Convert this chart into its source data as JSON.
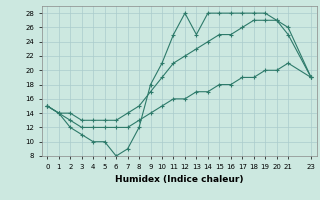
{
  "title": "",
  "xlabel": "Humidex (Indice chaleur)",
  "background_color": "#cce8e0",
  "grid_color": "#aacccc",
  "line_color": "#2d7a6a",
  "xlim": [
    -0.5,
    23.5
  ],
  "ylim": [
    8,
    29
  ],
  "yticks": [
    8,
    10,
    12,
    14,
    16,
    18,
    20,
    22,
    24,
    26,
    28
  ],
  "xticks": [
    0,
    1,
    2,
    3,
    4,
    5,
    6,
    7,
    8,
    9,
    10,
    11,
    12,
    13,
    14,
    15,
    16,
    17,
    18,
    19,
    20,
    21,
    23
  ],
  "line1_x": [
    0,
    1,
    2,
    3,
    4,
    5,
    6,
    7,
    8,
    9,
    10,
    11,
    12,
    13,
    14,
    15,
    16,
    17,
    18,
    19,
    20,
    21,
    23
  ],
  "line1_y": [
    15,
    14,
    12,
    11,
    10,
    10,
    8,
    9,
    12,
    18,
    21,
    25,
    28,
    25,
    28,
    28,
    28,
    28,
    28,
    28,
    27,
    25,
    19
  ],
  "line2_x": [
    0,
    1,
    2,
    3,
    4,
    5,
    6,
    7,
    8,
    9,
    10,
    11,
    12,
    13,
    14,
    15,
    16,
    17,
    18,
    19,
    20,
    21,
    23
  ],
  "line2_y": [
    15,
    14,
    14,
    13,
    13,
    13,
    13,
    14,
    15,
    17,
    19,
    21,
    22,
    23,
    24,
    25,
    25,
    26,
    27,
    27,
    27,
    26,
    19
  ],
  "line3_x": [
    0,
    1,
    2,
    3,
    4,
    5,
    6,
    7,
    8,
    9,
    10,
    11,
    12,
    13,
    14,
    15,
    16,
    17,
    18,
    19,
    20,
    21,
    23
  ],
  "line3_y": [
    15,
    14,
    13,
    12,
    12,
    12,
    12,
    12,
    13,
    14,
    15,
    16,
    16,
    17,
    17,
    18,
    18,
    19,
    19,
    20,
    20,
    21,
    19
  ]
}
